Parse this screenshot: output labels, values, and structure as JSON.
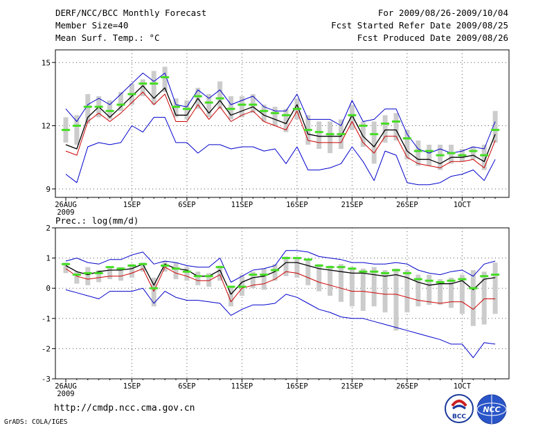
{
  "header": {
    "title": "DERF/NCC/BCC Monthly Forecast",
    "member_size": "Member Size=40",
    "variable": "Mean Surf. Temp.: °C",
    "period": "For 2009/08/26-2009/10/04",
    "started": "Fcst Started Refer Date 2009/08/25",
    "produced": "Fcst Produced Date 2009/08/26"
  },
  "footer": {
    "url": "http://cmdp.ncc.cma.gov.cn",
    "software": "GrADS: COLA/IGES",
    "logo_bcc": "BCC",
    "logo_ncc": "NCC"
  },
  "colors": {
    "envelope": "#0000cc",
    "mean": "#000000",
    "median": "#cc0000",
    "mode_marker": "#44dd22",
    "spread_bar": "#cccccc",
    "grid": "#555555"
  },
  "chart_data": [
    {
      "type": "line",
      "title": "Mean Surf. Temp.: °C",
      "ylim": [
        8.6,
        15.6
      ],
      "yticks": [
        9,
        12,
        15
      ],
      "ytick_labels": [
        "9",
        "12",
        "15"
      ],
      "x_tick_days": [
        0,
        6,
        11,
        16,
        21,
        26,
        31,
        36
      ],
      "x_tick_labels": [
        "26AUG",
        "1SEP",
        "6SEP",
        "11SEP",
        "16SEP",
        "21SEP",
        "26SEP",
        "1OCT"
      ],
      "x_year_label": "2009",
      "days": 40,
      "series": [
        {
          "name": "max",
          "values": [
            12.8,
            12.2,
            13.0,
            13.3,
            13.0,
            13.5,
            14.0,
            14.5,
            14.1,
            14.5,
            13.0,
            12.9,
            13.7,
            13.3,
            13.7,
            13.0,
            13.2,
            13.4,
            12.9,
            12.7,
            12.7,
            13.5,
            12.3,
            12.3,
            12.3,
            12.0,
            13.2,
            12.2,
            12.3,
            12.8,
            12.8,
            11.6,
            10.9,
            10.7,
            10.9,
            10.7,
            10.8,
            11.0,
            10.9,
            12.2
          ]
        },
        {
          "name": "mean",
          "values": [
            11.1,
            10.9,
            12.4,
            12.9,
            12.4,
            12.9,
            13.4,
            13.9,
            13.3,
            13.8,
            12.5,
            12.5,
            13.3,
            12.6,
            13.2,
            12.5,
            12.7,
            12.9,
            12.5,
            12.3,
            12.1,
            13.0,
            11.6,
            11.5,
            11.5,
            11.5,
            12.5,
            11.5,
            11.0,
            11.8,
            11.8,
            10.8,
            10.4,
            10.4,
            10.2,
            10.5,
            10.5,
            10.6,
            10.3,
            11.6
          ]
        },
        {
          "name": "median",
          "values": [
            10.8,
            10.6,
            12.2,
            12.6,
            12.2,
            12.6,
            13.1,
            13.6,
            13.0,
            13.5,
            12.2,
            12.2,
            13.0,
            12.3,
            12.9,
            12.2,
            12.5,
            12.7,
            12.2,
            12.0,
            11.8,
            12.7,
            11.3,
            11.2,
            11.2,
            11.2,
            12.2,
            11.2,
            10.7,
            11.5,
            11.5,
            10.5,
            10.2,
            10.1,
            10.0,
            10.3,
            10.3,
            10.4,
            10.0,
            11.3
          ]
        },
        {
          "name": "min",
          "values": [
            9.7,
            9.3,
            11.0,
            11.2,
            11.1,
            11.2,
            12.0,
            11.7,
            12.4,
            12.4,
            11.2,
            11.2,
            10.7,
            11.1,
            11.1,
            10.9,
            11.0,
            11.0,
            10.8,
            10.9,
            10.2,
            11.0,
            9.9,
            9.9,
            10.0,
            10.2,
            11.0,
            10.3,
            9.4,
            10.8,
            10.6,
            9.3,
            9.2,
            9.2,
            9.3,
            9.6,
            9.7,
            9.9,
            9.4,
            10.4
          ]
        },
        {
          "name": "mode",
          "values": [
            11.8,
            12.0,
            12.9,
            12.9,
            12.7,
            13.0,
            13.5,
            14.0,
            14.0,
            14.3,
            12.9,
            12.8,
            13.4,
            13.1,
            13.3,
            12.8,
            13.0,
            13.0,
            12.7,
            12.6,
            12.5,
            12.8,
            11.8,
            11.7,
            11.6,
            11.6,
            12.5,
            12.0,
            11.6,
            12.1,
            12.2,
            11.4,
            10.8,
            10.8,
            10.6,
            10.7,
            10.6,
            10.8,
            10.6,
            11.8
          ]
        },
        {
          "name": "spread_high",
          "values": [
            12.4,
            12.5,
            13.5,
            13.4,
            13.2,
            13.6,
            14.0,
            14.2,
            14.6,
            14.8,
            13.3,
            13.2,
            13.8,
            13.5,
            14.1,
            13.4,
            13.4,
            13.5,
            13.0,
            12.9,
            12.8,
            13.3,
            12.5,
            12.2,
            12.2,
            12.3,
            13.0,
            12.2,
            12.2,
            12.5,
            12.6,
            11.8,
            11.3,
            11.1,
            11.1,
            11.1,
            10.9,
            11.0,
            11.1,
            12.7
          ]
        },
        {
          "name": "spread_low",
          "values": [
            11.2,
            11.1,
            12.1,
            12.4,
            12.3,
            12.7,
            13.0,
            13.4,
            13.0,
            13.6,
            12.4,
            12.3,
            12.8,
            12.4,
            12.8,
            12.3,
            12.4,
            12.6,
            12.2,
            12.0,
            11.7,
            12.3,
            11.1,
            10.9,
            10.7,
            10.9,
            11.8,
            11.0,
            10.2,
            11.2,
            11.3,
            10.4,
            10.1,
            10.1,
            9.9,
            10.2,
            10.3,
            10.4,
            9.9,
            11.2
          ]
        }
      ]
    },
    {
      "type": "line",
      "title": "Prec.: log(mm/d)",
      "ylim": [
        -3,
        2
      ],
      "yticks": [
        -3,
        -2,
        -1,
        0,
        1,
        2
      ],
      "ytick_labels": [
        "-3",
        "-2",
        "-1",
        "0",
        "1",
        "2"
      ],
      "x_tick_days": [
        0,
        6,
        11,
        16,
        21,
        26,
        31,
        36
      ],
      "x_tick_labels": [
        "26AUG",
        "1SEP",
        "6SEP",
        "11SEP",
        "16SEP",
        "21SEP",
        "26SEP",
        "1OCT"
      ],
      "x_year_label": "2009",
      "days": 40,
      "series": [
        {
          "name": "max",
          "values": [
            0.9,
            1.0,
            0.85,
            0.8,
            0.95,
            0.95,
            1.1,
            1.2,
            0.8,
            0.9,
            0.85,
            0.75,
            0.7,
            0.7,
            1.0,
            0.2,
            0.4,
            0.6,
            0.65,
            0.75,
            1.25,
            1.25,
            1.2,
            1.05,
            1.0,
            0.95,
            0.85,
            0.85,
            0.8,
            0.8,
            0.85,
            0.8,
            0.6,
            0.5,
            0.45,
            0.55,
            0.6,
            0.4,
            0.8,
            0.9
          ]
        },
        {
          "name": "mean",
          "values": [
            0.75,
            0.55,
            0.45,
            0.55,
            0.6,
            0.6,
            0.65,
            0.8,
            0.1,
            0.8,
            0.65,
            0.6,
            0.4,
            0.4,
            0.6,
            -0.2,
            0.2,
            0.35,
            0.4,
            0.55,
            0.85,
            0.85,
            0.75,
            0.65,
            0.6,
            0.55,
            0.5,
            0.5,
            0.45,
            0.4,
            0.45,
            0.35,
            0.2,
            0.1,
            0.15,
            0.15,
            0.25,
            -0.05,
            0.3,
            0.35
          ]
        },
        {
          "name": "median",
          "values": [
            0.65,
            0.4,
            0.3,
            0.35,
            0.4,
            0.4,
            0.5,
            0.65,
            -0.1,
            0.7,
            0.5,
            0.4,
            0.25,
            0.25,
            0.45,
            -0.45,
            0.0,
            0.1,
            0.15,
            0.3,
            0.55,
            0.5,
            0.35,
            0.2,
            0.1,
            0.0,
            -0.1,
            -0.1,
            -0.15,
            -0.2,
            -0.2,
            -0.3,
            -0.4,
            -0.45,
            -0.5,
            -0.45,
            -0.45,
            -0.7,
            -0.35,
            -0.35
          ]
        },
        {
          "name": "min",
          "values": [
            -0.05,
            -0.15,
            -0.25,
            -0.35,
            -0.1,
            -0.1,
            -0.1,
            0.0,
            -0.5,
            -0.1,
            -0.3,
            -0.4,
            -0.4,
            -0.45,
            -0.5,
            -0.9,
            -0.7,
            -0.55,
            -0.55,
            -0.5,
            -0.2,
            -0.3,
            -0.5,
            -0.7,
            -0.8,
            -0.95,
            -1.0,
            -1.0,
            -1.1,
            -1.2,
            -1.3,
            -1.4,
            -1.5,
            -1.6,
            -1.7,
            -1.85,
            -1.85,
            -2.3,
            -1.8,
            -1.85
          ]
        },
        {
          "name": "mode",
          "values": [
            0.8,
            0.45,
            0.5,
            0.5,
            0.7,
            0.65,
            0.75,
            0.8,
            0.0,
            0.75,
            0.65,
            0.55,
            0.4,
            0.4,
            0.7,
            0.05,
            0.05,
            0.45,
            0.45,
            0.6,
            1.0,
            1.0,
            0.95,
            0.75,
            0.7,
            0.7,
            0.65,
            0.55,
            0.55,
            0.5,
            0.6,
            0.5,
            0.3,
            0.25,
            0.2,
            0.25,
            0.3,
            0.0,
            0.4,
            0.45
          ]
        },
        {
          "name": "spread_high",
          "values": [
            0.85,
            0.55,
            0.7,
            0.6,
            0.7,
            0.7,
            0.8,
            0.85,
            0.35,
            0.9,
            0.85,
            0.7,
            0.55,
            0.5,
            0.75,
            0.05,
            0.45,
            0.55,
            0.65,
            0.8,
            1.05,
            1.0,
            0.95,
            0.8,
            0.75,
            0.8,
            0.7,
            0.65,
            0.7,
            0.6,
            0.65,
            0.6,
            0.45,
            0.45,
            0.3,
            0.35,
            0.45,
            0.6,
            0.55,
            0.85
          ]
        },
        {
          "name": "spread_low",
          "values": [
            0.5,
            0.15,
            0.1,
            0.2,
            0.3,
            0.25,
            0.35,
            0.55,
            -0.6,
            0.55,
            0.3,
            0.25,
            0.1,
            0.05,
            0.25,
            -0.6,
            -0.25,
            0.0,
            -0.05,
            0.25,
            0.4,
            0.35,
            0.1,
            -0.1,
            -0.25,
            -0.45,
            -0.6,
            -0.75,
            -0.6,
            -0.8,
            -1.4,
            -0.8,
            -0.6,
            -0.55,
            -0.55,
            -0.65,
            -0.85,
            -1.25,
            -1.2,
            -0.85
          ]
        }
      ]
    }
  ]
}
